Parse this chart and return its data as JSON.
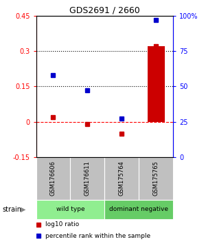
{
  "title": "GDS2691 / 2660",
  "samples": [
    "GSM176606",
    "GSM176611",
    "GSM175764",
    "GSM175765"
  ],
  "log10_ratio": [
    0.02,
    -0.01,
    -0.05,
    0.32
  ],
  "percentile_rank": [
    58,
    47,
    27,
    97
  ],
  "bar_color": "#CC0000",
  "marker_color_red": "#CC0000",
  "marker_color_blue": "#0000CC",
  "ylim_left": [
    -0.15,
    0.45
  ],
  "ylim_right": [
    0,
    100
  ],
  "yticks_left": [
    -0.15,
    0.0,
    0.15,
    0.3,
    0.45
  ],
  "yticks_right": [
    0,
    25,
    50,
    75,
    100
  ],
  "ytick_labels_left": [
    "-0.15",
    "0",
    "0.15",
    "0.3",
    "0.45"
  ],
  "ytick_labels_right": [
    "0",
    "25",
    "50",
    "75",
    "100%"
  ],
  "hlines_dotted": [
    0.15,
    0.3
  ],
  "hline_dashed_color": "red",
  "group_row_color_wt": "#90EE90",
  "group_row_color_dn": "#66CC66",
  "sample_row_color": "#C0C0C0",
  "strain_label": "strain",
  "legend_red_label": "log10 ratio",
  "legend_blue_label": "percentile rank within the sample",
  "bar_width": 0.5,
  "marker_size": 5,
  "groups": [
    {
      "label": "wild type",
      "start": 0,
      "end": 1,
      "color": "#90EE90"
    },
    {
      "label": "dominant negative",
      "start": 2,
      "end": 3,
      "color": "#66CC66"
    }
  ]
}
